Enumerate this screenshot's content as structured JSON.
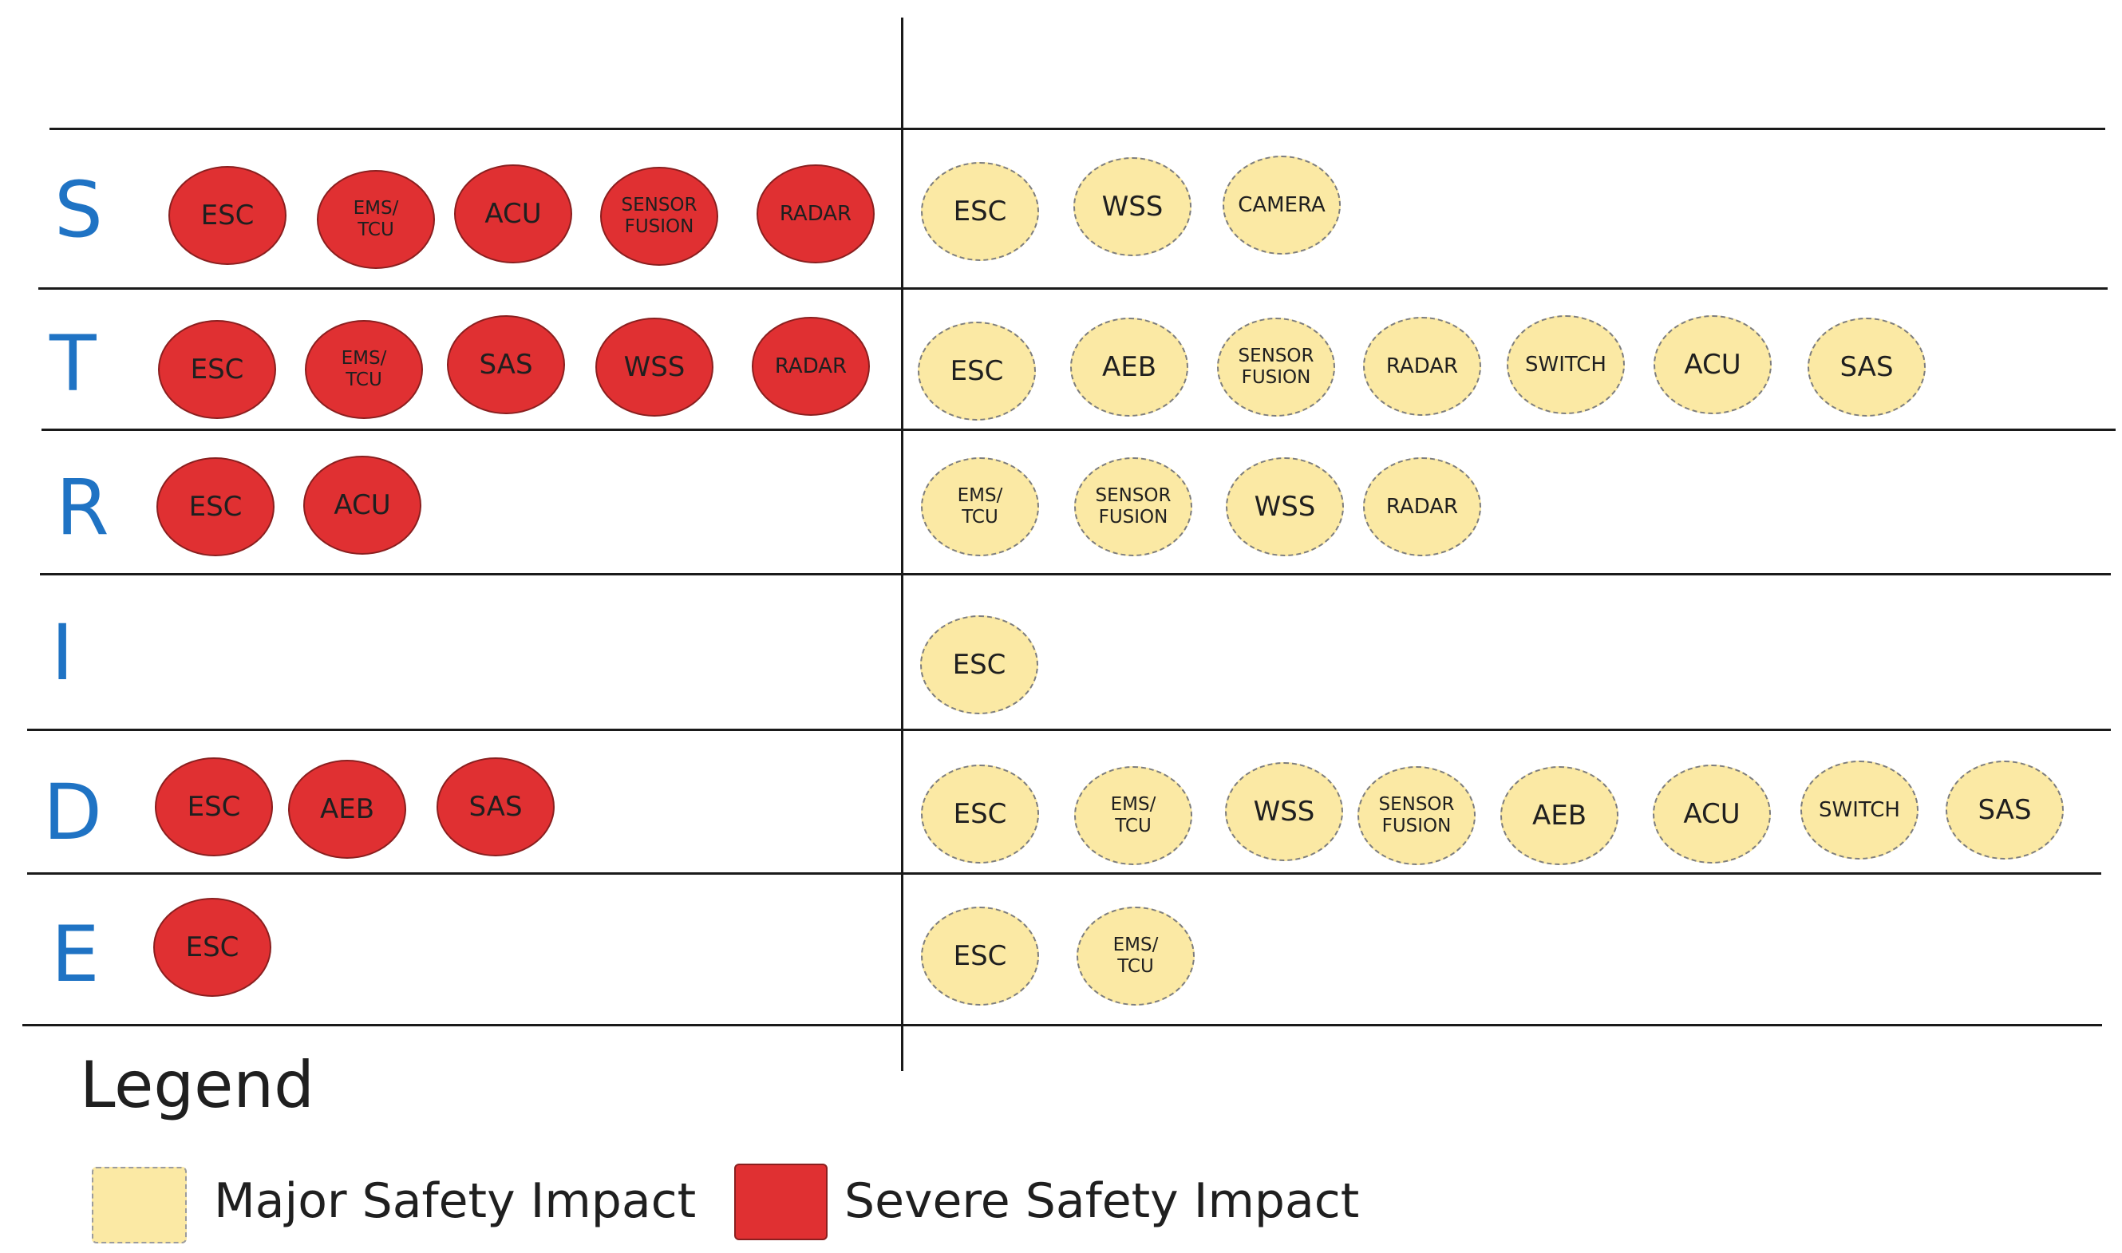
{
  "colors": {
    "severe": "#e03032",
    "major": "#fbe9a4",
    "letter": "#1f73c4"
  },
  "rows": [
    {
      "letter": "S",
      "severe": [
        "ESC",
        "EMS/\nTCU",
        "ACU",
        "SENSOR\nFUSION",
        "RADAR"
      ],
      "major": [
        "ESC",
        "WSS",
        "CAMERA"
      ]
    },
    {
      "letter": "T",
      "severe": [
        "ESC",
        "EMS/\nTCU",
        "SAS",
        "WSS",
        "RADAR"
      ],
      "major": [
        "ESC",
        "AEB",
        "SENSOR\nFUSION",
        "RADAR",
        "SWITCH",
        "ACU",
        "SAS"
      ]
    },
    {
      "letter": "R",
      "severe": [
        "ESC",
        "ACU"
      ],
      "major": [
        "EMS/\nTCU",
        "SENSOR\nFUSION",
        "WSS",
        "RADAR"
      ]
    },
    {
      "letter": "I",
      "severe": [],
      "major": [
        "ESC"
      ]
    },
    {
      "letter": "D",
      "severe": [
        "ESC",
        "AEB",
        "SAS"
      ],
      "major": [
        "ESC",
        "EMS/\nTCU",
        "WSS",
        "SENSOR\nFUSION",
        "AEB",
        "ACU",
        "SWITCH",
        "SAS"
      ]
    },
    {
      "letter": "E",
      "severe": [
        "ESC"
      ],
      "major": [
        "ESC",
        "EMS/\nTCU"
      ]
    }
  ],
  "legend": {
    "title": "Legend",
    "major_label": "Major Safety Impact",
    "severe_label": "Severe Safety Impact"
  }
}
